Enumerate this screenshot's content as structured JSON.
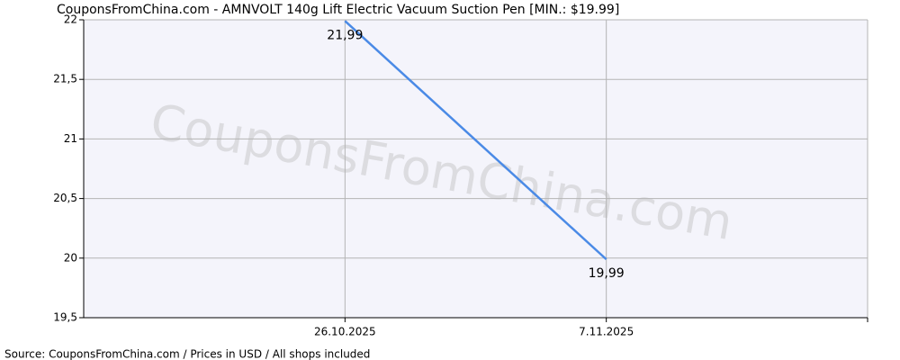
{
  "chart_data": {
    "type": "line",
    "title": "CouponsFromChina.com - AMNVOLT 140g Lift Electric Vacuum Suction Pen [MIN.: $19.99]",
    "categories": [
      "26.10.2025",
      "7.11.2025"
    ],
    "values": [
      21.99,
      19.99
    ],
    "value_labels": [
      "21,99",
      "19,99"
    ],
    "color": "#4a8ae6",
    "ylim": [
      19.5,
      22
    ],
    "yticks": [
      {
        "value": 19.5,
        "label": "19,5"
      },
      20,
      {
        "value": 20.5,
        "label": "20,5"
      },
      21,
      {
        "value": 21.5,
        "label": "21,5"
      },
      22
    ],
    "grid": true,
    "watermark": "CouponsFromChina.com",
    "source": "Source: CouponsFromChina.com / Prices in USD / All shops included"
  }
}
